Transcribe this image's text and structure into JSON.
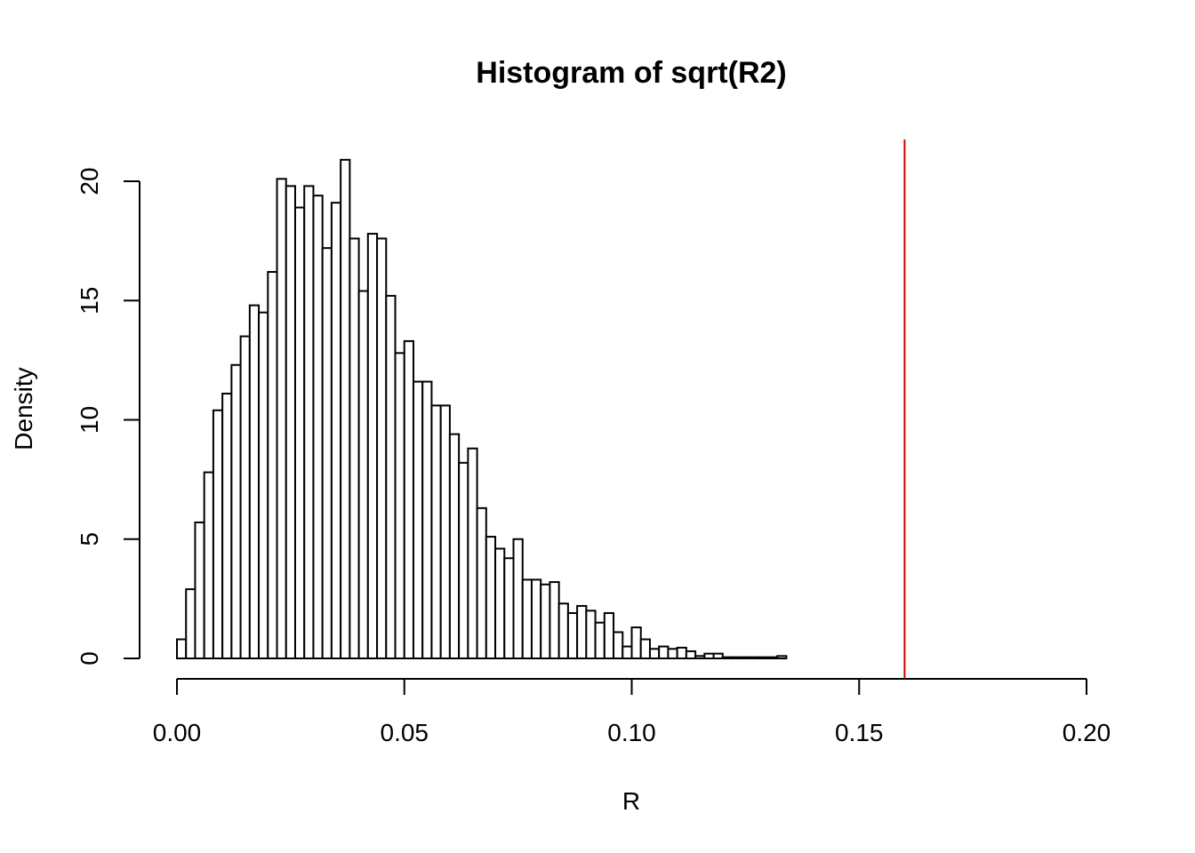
{
  "chart_data": {
    "type": "bar",
    "title": "Histogram of sqrt(R2)",
    "xlabel": "R",
    "ylabel": "Density",
    "xlim": [
      0.0,
      0.2
    ],
    "ylim": [
      0,
      21.5
    ],
    "bin_width": 0.002,
    "bin_start": 0.0,
    "x_ticks": [
      0.0,
      0.05,
      0.1,
      0.15,
      0.2
    ],
    "x_tick_labels": [
      "0.00",
      "0.05",
      "0.10",
      "0.15",
      "0.20"
    ],
    "y_ticks": [
      0,
      5,
      10,
      15,
      20
    ],
    "y_tick_labels": [
      "0",
      "5",
      "10",
      "15",
      "20"
    ],
    "values": [
      0.8,
      2.9,
      5.7,
      7.8,
      10.4,
      11.1,
      12.3,
      13.5,
      14.8,
      14.5,
      16.2,
      20.1,
      19.8,
      18.9,
      19.8,
      19.4,
      17.2,
      19.1,
      20.9,
      17.6,
      15.4,
      17.8,
      17.6,
      15.2,
      12.8,
      13.3,
      11.6,
      11.6,
      10.6,
      10.6,
      9.4,
      8.2,
      8.8,
      6.3,
      5.1,
      4.6,
      4.2,
      5.0,
      3.3,
      3.3,
      3.1,
      3.2,
      2.3,
      1.9,
      2.2,
      2.0,
      1.5,
      1.9,
      1.1,
      0.5,
      1.3,
      0.8,
      0.4,
      0.5,
      0.4,
      0.45,
      0.3,
      0.1,
      0.2,
      0.2,
      0.05,
      0.05,
      0.05,
      0.05,
      0.05,
      0.05,
      0.1
    ],
    "reference_line": {
      "x": 0.16,
      "color": "#cc0000"
    },
    "bar_fill": "#ffffff",
    "bar_stroke": "#000000",
    "grid": false,
    "legend": "none"
  }
}
